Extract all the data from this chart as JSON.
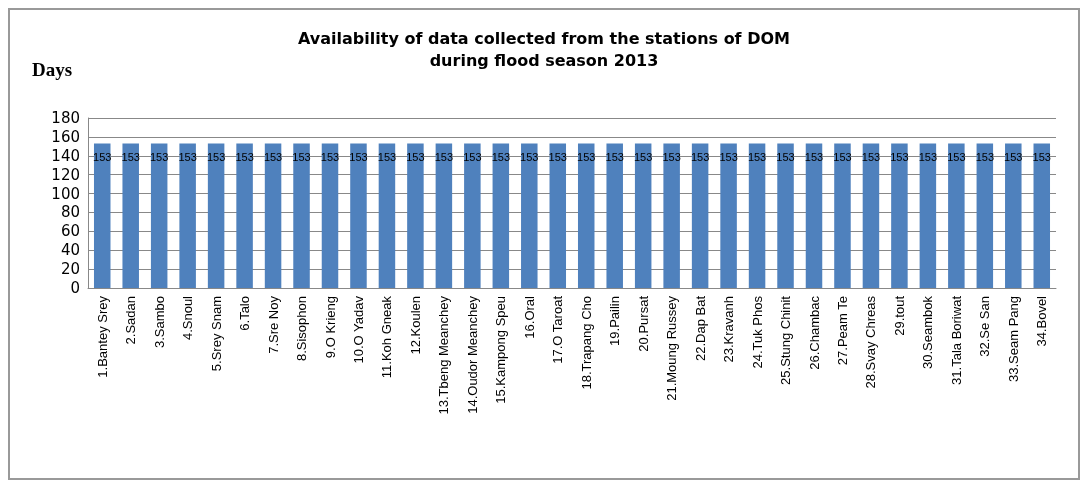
{
  "chart_data": {
    "type": "bar",
    "title": "Availability of data collected from the stations of DOM\nduring flood season 2013",
    "ylabel": "Days",
    "categories": [
      "1.Bantey Srey",
      "2.Sadan",
      "3.Sambo",
      "4.Snoul",
      "5.Srey Snam",
      "6.Talo",
      "7.Sre Noy",
      "8.Sisophon",
      "9.O Krieng",
      "10.O Yadav",
      "11.Koh Gneak",
      "12.Koulen",
      "13.Tbeng Meanchey",
      "14.Oudor Meanchey",
      "15.Kampong Speu",
      "16.Oral",
      "17.O Taroat",
      "18.Trapang Cho",
      "19.Pailin",
      "20.Pursat",
      "21.Moung Russey",
      "22.Dap Bat",
      "23.Kravanh",
      "24.Tuk Phos",
      "25.Stung Chinit",
      "26.Chambac",
      "27.Peam Te",
      "28.Svay Chreas",
      "29.tout",
      "30.Seambok",
      "31.Tala Boriwat",
      "32.Se San",
      "33.Seam Pang",
      "34.Bovel"
    ],
    "values": [
      153,
      153,
      153,
      153,
      153,
      153,
      153,
      153,
      153,
      153,
      153,
      153,
      153,
      153,
      153,
      153,
      153,
      153,
      153,
      153,
      153,
      153,
      153,
      153,
      153,
      153,
      153,
      153,
      153,
      153,
      153,
      153,
      153,
      153
    ],
    "color": "#4f81bd",
    "ylim": [
      0,
      180
    ],
    "yticks": [
      0,
      20,
      40,
      60,
      80,
      100,
      120,
      140,
      160,
      180
    ],
    "grid": "y",
    "data_labels": true
  }
}
